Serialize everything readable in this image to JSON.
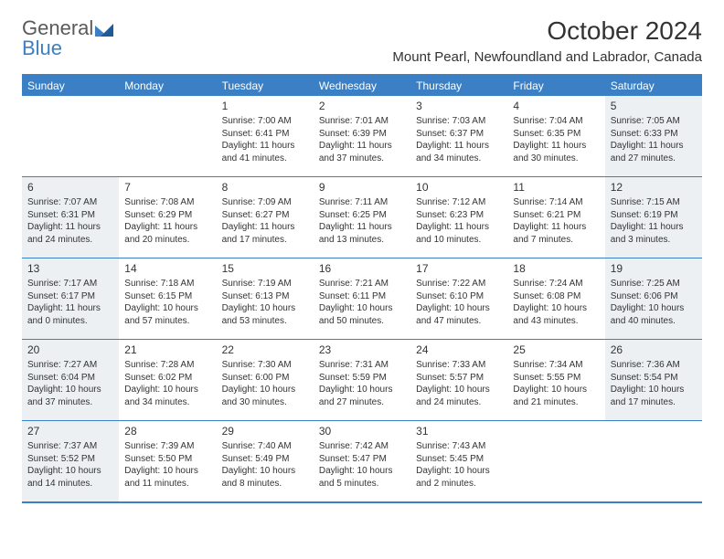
{
  "logo": {
    "text1": "General",
    "text2": "Blue"
  },
  "title": "October 2024",
  "location": "Mount Pearl, Newfoundland and Labrador, Canada",
  "colors": {
    "accent": "#3b7fc4",
    "weekend_bg": "#ecf0f3",
    "text": "#333333",
    "bg": "#ffffff"
  },
  "daynames": [
    "Sunday",
    "Monday",
    "Tuesday",
    "Wednesday",
    "Thursday",
    "Friday",
    "Saturday"
  ],
  "weeks": [
    [
      {
        "empty": true
      },
      {
        "empty": true
      },
      {
        "num": "1",
        "sunrise": "Sunrise: 7:00 AM",
        "sunset": "Sunset: 6:41 PM",
        "daylight": "Daylight: 11 hours and 41 minutes."
      },
      {
        "num": "2",
        "sunrise": "Sunrise: 7:01 AM",
        "sunset": "Sunset: 6:39 PM",
        "daylight": "Daylight: 11 hours and 37 minutes."
      },
      {
        "num": "3",
        "sunrise": "Sunrise: 7:03 AM",
        "sunset": "Sunset: 6:37 PM",
        "daylight": "Daylight: 11 hours and 34 minutes."
      },
      {
        "num": "4",
        "sunrise": "Sunrise: 7:04 AM",
        "sunset": "Sunset: 6:35 PM",
        "daylight": "Daylight: 11 hours and 30 minutes."
      },
      {
        "num": "5",
        "sunrise": "Sunrise: 7:05 AM",
        "sunset": "Sunset: 6:33 PM",
        "daylight": "Daylight: 11 hours and 27 minutes."
      }
    ],
    [
      {
        "num": "6",
        "sunrise": "Sunrise: 7:07 AM",
        "sunset": "Sunset: 6:31 PM",
        "daylight": "Daylight: 11 hours and 24 minutes."
      },
      {
        "num": "7",
        "sunrise": "Sunrise: 7:08 AM",
        "sunset": "Sunset: 6:29 PM",
        "daylight": "Daylight: 11 hours and 20 minutes."
      },
      {
        "num": "8",
        "sunrise": "Sunrise: 7:09 AM",
        "sunset": "Sunset: 6:27 PM",
        "daylight": "Daylight: 11 hours and 17 minutes."
      },
      {
        "num": "9",
        "sunrise": "Sunrise: 7:11 AM",
        "sunset": "Sunset: 6:25 PM",
        "daylight": "Daylight: 11 hours and 13 minutes."
      },
      {
        "num": "10",
        "sunrise": "Sunrise: 7:12 AM",
        "sunset": "Sunset: 6:23 PM",
        "daylight": "Daylight: 11 hours and 10 minutes."
      },
      {
        "num": "11",
        "sunrise": "Sunrise: 7:14 AM",
        "sunset": "Sunset: 6:21 PM",
        "daylight": "Daylight: 11 hours and 7 minutes."
      },
      {
        "num": "12",
        "sunrise": "Sunrise: 7:15 AM",
        "sunset": "Sunset: 6:19 PM",
        "daylight": "Daylight: 11 hours and 3 minutes."
      }
    ],
    [
      {
        "num": "13",
        "sunrise": "Sunrise: 7:17 AM",
        "sunset": "Sunset: 6:17 PM",
        "daylight": "Daylight: 11 hours and 0 minutes."
      },
      {
        "num": "14",
        "sunrise": "Sunrise: 7:18 AM",
        "sunset": "Sunset: 6:15 PM",
        "daylight": "Daylight: 10 hours and 57 minutes."
      },
      {
        "num": "15",
        "sunrise": "Sunrise: 7:19 AM",
        "sunset": "Sunset: 6:13 PM",
        "daylight": "Daylight: 10 hours and 53 minutes."
      },
      {
        "num": "16",
        "sunrise": "Sunrise: 7:21 AM",
        "sunset": "Sunset: 6:11 PM",
        "daylight": "Daylight: 10 hours and 50 minutes."
      },
      {
        "num": "17",
        "sunrise": "Sunrise: 7:22 AM",
        "sunset": "Sunset: 6:10 PM",
        "daylight": "Daylight: 10 hours and 47 minutes."
      },
      {
        "num": "18",
        "sunrise": "Sunrise: 7:24 AM",
        "sunset": "Sunset: 6:08 PM",
        "daylight": "Daylight: 10 hours and 43 minutes."
      },
      {
        "num": "19",
        "sunrise": "Sunrise: 7:25 AM",
        "sunset": "Sunset: 6:06 PM",
        "daylight": "Daylight: 10 hours and 40 minutes."
      }
    ],
    [
      {
        "num": "20",
        "sunrise": "Sunrise: 7:27 AM",
        "sunset": "Sunset: 6:04 PM",
        "daylight": "Daylight: 10 hours and 37 minutes."
      },
      {
        "num": "21",
        "sunrise": "Sunrise: 7:28 AM",
        "sunset": "Sunset: 6:02 PM",
        "daylight": "Daylight: 10 hours and 34 minutes."
      },
      {
        "num": "22",
        "sunrise": "Sunrise: 7:30 AM",
        "sunset": "Sunset: 6:00 PM",
        "daylight": "Daylight: 10 hours and 30 minutes."
      },
      {
        "num": "23",
        "sunrise": "Sunrise: 7:31 AM",
        "sunset": "Sunset: 5:59 PM",
        "daylight": "Daylight: 10 hours and 27 minutes."
      },
      {
        "num": "24",
        "sunrise": "Sunrise: 7:33 AM",
        "sunset": "Sunset: 5:57 PM",
        "daylight": "Daylight: 10 hours and 24 minutes."
      },
      {
        "num": "25",
        "sunrise": "Sunrise: 7:34 AM",
        "sunset": "Sunset: 5:55 PM",
        "daylight": "Daylight: 10 hours and 21 minutes."
      },
      {
        "num": "26",
        "sunrise": "Sunrise: 7:36 AM",
        "sunset": "Sunset: 5:54 PM",
        "daylight": "Daylight: 10 hours and 17 minutes."
      }
    ],
    [
      {
        "num": "27",
        "sunrise": "Sunrise: 7:37 AM",
        "sunset": "Sunset: 5:52 PM",
        "daylight": "Daylight: 10 hours and 14 minutes."
      },
      {
        "num": "28",
        "sunrise": "Sunrise: 7:39 AM",
        "sunset": "Sunset: 5:50 PM",
        "daylight": "Daylight: 10 hours and 11 minutes."
      },
      {
        "num": "29",
        "sunrise": "Sunrise: 7:40 AM",
        "sunset": "Sunset: 5:49 PM",
        "daylight": "Daylight: 10 hours and 8 minutes."
      },
      {
        "num": "30",
        "sunrise": "Sunrise: 7:42 AM",
        "sunset": "Sunset: 5:47 PM",
        "daylight": "Daylight: 10 hours and 5 minutes."
      },
      {
        "num": "31",
        "sunrise": "Sunrise: 7:43 AM",
        "sunset": "Sunset: 5:45 PM",
        "daylight": "Daylight: 10 hours and 2 minutes."
      },
      {
        "empty": true
      },
      {
        "empty": true
      }
    ]
  ]
}
